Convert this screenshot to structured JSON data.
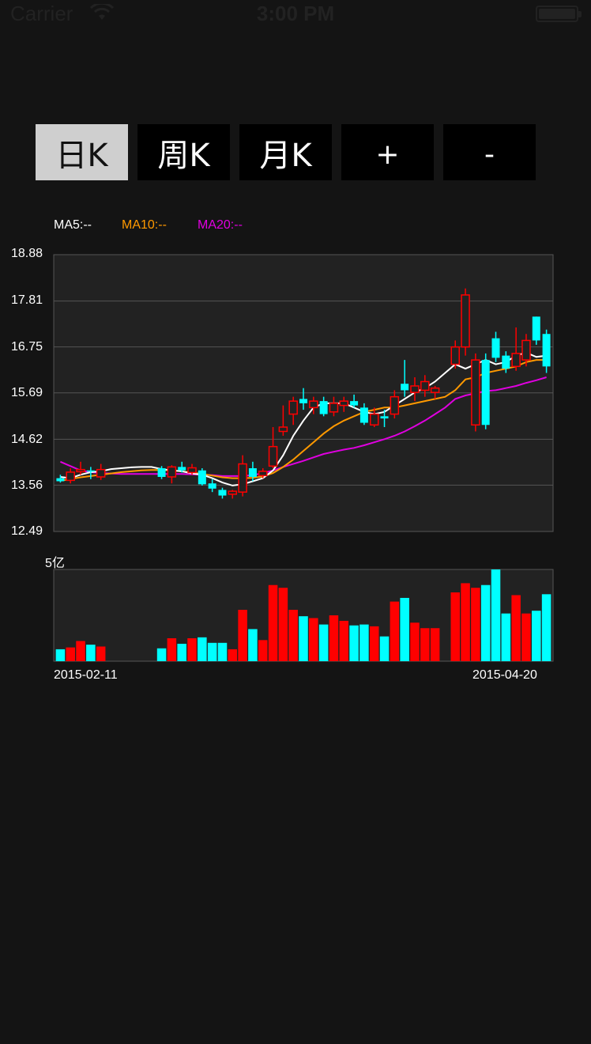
{
  "status_bar": {
    "carrier": "Carrier",
    "time": "3:00 PM"
  },
  "tabs": [
    {
      "label": "日K",
      "active": true
    },
    {
      "label": "周K",
      "active": false
    },
    {
      "label": "月K",
      "active": false
    },
    {
      "label": "+",
      "active": false
    },
    {
      "label": "-",
      "active": false
    }
  ],
  "legend": {
    "ma5": "MA5:--",
    "ma10": "MA10:--",
    "ma20": "MA20:--"
  },
  "colors": {
    "up": "#ff0000",
    "down": "#00ffff",
    "ma5": "#ffffff",
    "ma10": "#ff9900",
    "ma20": "#e000e0",
    "panel": "#222222",
    "grid": "#555555"
  },
  "volume_unit": "5亿",
  "chart_data": {
    "type": "candlestick",
    "y_labels": [
      "18.88",
      "17.81",
      "16.75",
      "15.69",
      "14.62",
      "13.56",
      "12.49"
    ],
    "ylim": [
      12.49,
      18.88
    ],
    "x_start_label": "2015-02-11",
    "x_end_label": "2015-04-20",
    "candles": [
      {
        "o": 13.72,
        "h": 13.8,
        "l": 13.62,
        "c": 13.65,
        "v": 0.13
      },
      {
        "o": 13.67,
        "h": 13.95,
        "l": 13.6,
        "c": 13.86,
        "v": 0.15
      },
      {
        "o": 13.87,
        "h": 14.1,
        "l": 13.8,
        "c": 13.92,
        "v": 0.22
      },
      {
        "o": 13.9,
        "h": 13.98,
        "l": 13.7,
        "c": 13.88,
        "v": 0.18
      },
      {
        "o": 13.75,
        "h": 14.05,
        "l": 13.68,
        "c": 13.92,
        "v": 0.16
      },
      {
        "o": null,
        "h": null,
        "l": null,
        "c": null,
        "v": 0
      },
      {
        "o": null,
        "h": null,
        "l": null,
        "c": null,
        "v": 0
      },
      {
        "o": null,
        "h": null,
        "l": null,
        "c": null,
        "v": 0
      },
      {
        "o": null,
        "h": null,
        "l": null,
        "c": null,
        "v": 0
      },
      {
        "o": null,
        "h": null,
        "l": null,
        "c": null,
        "v": 0
      },
      {
        "o": 13.95,
        "h": 14.0,
        "l": 13.7,
        "c": 13.75,
        "v": 0.14
      },
      {
        "o": 13.75,
        "h": 14.02,
        "l": 13.6,
        "c": 13.98,
        "v": 0.25
      },
      {
        "o": 13.98,
        "h": 14.1,
        "l": 13.85,
        "c": 13.9,
        "v": 0.19
      },
      {
        "o": 13.85,
        "h": 14.05,
        "l": 13.8,
        "c": 13.96,
        "v": 0.25
      },
      {
        "o": 13.9,
        "h": 13.95,
        "l": 13.55,
        "c": 13.58,
        "v": 0.26
      },
      {
        "o": 13.6,
        "h": 13.7,
        "l": 13.4,
        "c": 13.48,
        "v": 0.2
      },
      {
        "o": 13.45,
        "h": 13.5,
        "l": 13.25,
        "c": 13.32,
        "v": 0.2
      },
      {
        "o": 13.35,
        "h": 13.45,
        "l": 13.25,
        "c": 13.42,
        "v": 0.13
      },
      {
        "o": 13.4,
        "h": 14.25,
        "l": 13.3,
        "c": 14.05,
        "v": 0.56
      },
      {
        "o": 13.95,
        "h": 14.1,
        "l": 13.65,
        "c": 13.75,
        "v": 0.35
      },
      {
        "o": 13.78,
        "h": 13.95,
        "l": 13.72,
        "c": 13.88,
        "v": 0.23
      },
      {
        "o": 14.0,
        "h": 14.9,
        "l": 13.95,
        "c": 14.45,
        "v": 0.83
      },
      {
        "o": 14.8,
        "h": 15.4,
        "l": 14.7,
        "c": 14.9,
        "v": 0.8
      },
      {
        "o": 15.2,
        "h": 15.6,
        "l": 14.95,
        "c": 15.5,
        "v": 0.56
      },
      {
        "o": 15.55,
        "h": 15.8,
        "l": 15.3,
        "c": 15.45,
        "v": 0.49
      },
      {
        "o": 15.35,
        "h": 15.6,
        "l": 15.2,
        "c": 15.5,
        "v": 0.47
      },
      {
        "o": 15.5,
        "h": 15.6,
        "l": 15.15,
        "c": 15.2,
        "v": 0.4
      },
      {
        "o": 15.25,
        "h": 15.6,
        "l": 15.15,
        "c": 15.45,
        "v": 0.5
      },
      {
        "o": 15.4,
        "h": 15.6,
        "l": 15.25,
        "c": 15.5,
        "v": 0.44
      },
      {
        "o": 15.5,
        "h": 15.65,
        "l": 15.35,
        "c": 15.4,
        "v": 0.39
      },
      {
        "o": 15.35,
        "h": 15.45,
        "l": 14.95,
        "c": 15.0,
        "v": 0.4
      },
      {
        "o": 14.95,
        "h": 15.35,
        "l": 14.9,
        "c": 15.2,
        "v": 0.38
      },
      {
        "o": 15.15,
        "h": 15.3,
        "l": 14.9,
        "c": 15.1,
        "v": 0.27
      },
      {
        "o": 15.2,
        "h": 15.75,
        "l": 15.1,
        "c": 15.6,
        "v": 0.65
      },
      {
        "o": 15.9,
        "h": 16.45,
        "l": 15.6,
        "c": 15.75,
        "v": 0.69
      },
      {
        "o": 15.7,
        "h": 16.05,
        "l": 15.5,
        "c": 15.85,
        "v": 0.42
      },
      {
        "o": 15.75,
        "h": 16.1,
        "l": 15.6,
        "c": 15.95,
        "v": 0.36
      },
      {
        "o": 15.7,
        "h": 15.85,
        "l": 15.55,
        "c": 15.8,
        "v": 0.36
      },
      {
        "o": null,
        "h": null,
        "l": null,
        "c": null,
        "v": 0
      },
      {
        "o": 16.35,
        "h": 16.9,
        "l": 16.25,
        "c": 16.75,
        "v": 0.75
      },
      {
        "o": 16.75,
        "h": 18.1,
        "l": 16.55,
        "c": 17.95,
        "v": 0.85
      },
      {
        "o": 14.95,
        "h": 16.6,
        "l": 14.8,
        "c": 16.45,
        "v": 0.8
      },
      {
        "o": 16.45,
        "h": 16.6,
        "l": 14.85,
        "c": 14.95,
        "v": 0.83
      },
      {
        "o": 16.95,
        "h": 17.1,
        "l": 16.4,
        "c": 16.5,
        "v": 1.0
      },
      {
        "o": 16.55,
        "h": 16.65,
        "l": 16.15,
        "c": 16.25,
        "v": 0.52
      },
      {
        "o": 16.3,
        "h": 17.2,
        "l": 16.2,
        "c": 16.6,
        "v": 0.72
      },
      {
        "o": 16.45,
        "h": 17.05,
        "l": 16.3,
        "c": 16.9,
        "v": 0.52
      },
      {
        "o": 17.45,
        "h": 17.45,
        "l": 16.8,
        "c": 16.9,
        "v": 0.55
      },
      {
        "o": 17.05,
        "h": 17.15,
        "l": 16.15,
        "c": 16.3,
        "v": 0.73
      }
    ],
    "ma5": [
      13.75,
      13.72,
      13.8,
      13.86,
      13.88,
      13.93,
      13.95,
      13.97,
      13.98,
      13.98,
      13.93,
      13.9,
      13.88,
      13.83,
      13.8,
      13.72,
      13.62,
      13.55,
      13.58,
      13.65,
      13.72,
      13.9,
      14.25,
      14.7,
      15.05,
      15.35,
      15.45,
      15.45,
      15.45,
      15.35,
      15.25,
      15.2,
      15.25,
      15.4,
      15.55,
      15.7,
      15.8,
      15.95,
      16.15,
      16.35,
      16.25,
      16.35,
      16.45,
      16.35,
      16.4,
      16.55,
      16.62,
      16.52,
      16.55
    ],
    "ma10": [
      13.66,
      13.7,
      13.74,
      13.77,
      13.8,
      13.83,
      13.86,
      13.88,
      13.9,
      13.91,
      13.91,
      13.9,
      13.88,
      13.85,
      13.82,
      13.78,
      13.74,
      13.72,
      13.72,
      13.73,
      13.76,
      13.84,
      13.98,
      14.15,
      14.35,
      14.55,
      14.75,
      14.92,
      15.05,
      15.15,
      15.25,
      15.3,
      15.35,
      15.35,
      15.4,
      15.45,
      15.5,
      15.55,
      15.6,
      15.75,
      16.0,
      16.05,
      16.15,
      16.2,
      16.25,
      16.3,
      16.4,
      16.45,
      16.45
    ],
    "ma20": [
      14.1,
      14.0,
      13.9,
      13.86,
      13.84,
      13.83,
      13.82,
      13.82,
      13.82,
      13.82,
      13.82,
      13.82,
      13.82,
      13.81,
      13.8,
      13.79,
      13.77,
      13.77,
      13.77,
      13.79,
      13.84,
      13.9,
      13.98,
      14.05,
      14.12,
      14.2,
      14.28,
      14.33,
      14.38,
      14.42,
      14.48,
      14.55,
      14.62,
      14.7,
      14.8,
      14.92,
      15.05,
      15.2,
      15.35,
      15.55,
      15.63,
      15.68,
      15.73,
      15.75,
      15.8,
      15.85,
      15.92,
      15.98,
      16.05
    ]
  }
}
